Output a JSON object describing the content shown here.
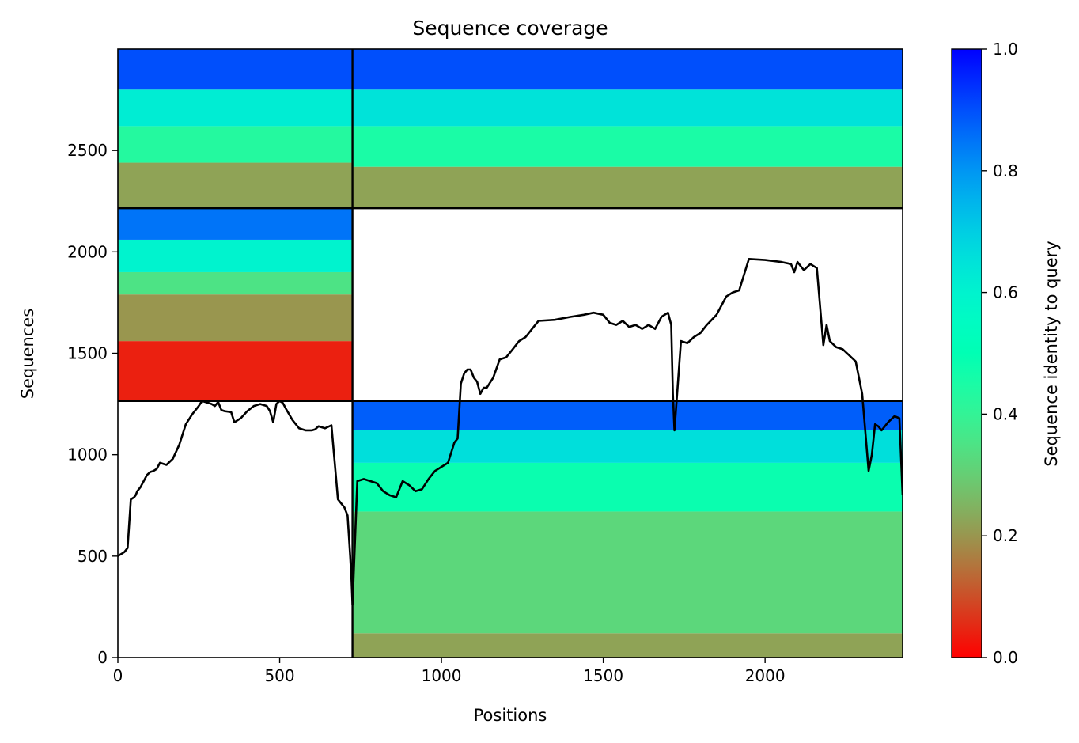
{
  "chart_data": {
    "type": "heatmap",
    "title": "Sequence coverage",
    "xlabel": "Positions",
    "ylabel": "Sequences",
    "colorbar_label": "Sequence identity to query",
    "colormap": "rainbow_r",
    "xlim": [
      0,
      2425
    ],
    "ylim": [
      0,
      3000
    ],
    "xticks": [
      0,
      500,
      1000,
      1500,
      2000
    ],
    "yticks": [
      0,
      500,
      1000,
      1500,
      2000,
      2500
    ],
    "colorbar_ticks": [
      0.0,
      0.2,
      0.4,
      0.6,
      0.8,
      1.0
    ],
    "colorbar_range": [
      0.0,
      1.0
    ],
    "grid": false,
    "chain_boundaries_x": [
      725
    ],
    "chain_boundaries_y": [
      1265,
      2215
    ],
    "blocks": [
      {
        "x": [
          0,
          725
        ],
        "y": [
          2215,
          3000
        ],
        "bands": [
          {
            "y": [
              2215,
              2440
            ],
            "identity": 0.22
          },
          {
            "y": [
              2440,
              2620
            ],
            "identity": 0.43
          },
          {
            "y": [
              2620,
              2800
            ],
            "identity": 0.62
          },
          {
            "y": [
              2800,
              3000
            ],
            "identity": 0.9
          }
        ]
      },
      {
        "x": [
          725,
          2425
        ],
        "y": [
          2215,
          3000
        ],
        "bands": [
          {
            "y": [
              2215,
              2420
            ],
            "identity": 0.22
          },
          {
            "y": [
              2420,
              2620
            ],
            "identity": 0.45
          },
          {
            "y": [
              2620,
              2800
            ],
            "identity": 0.65
          },
          {
            "y": [
              2800,
              3000
            ],
            "identity": 0.9
          }
        ]
      },
      {
        "x": [
          0,
          725
        ],
        "y": [
          1265,
          2215
        ],
        "bands": [
          {
            "y": [
              1265,
              1560
            ],
            "identity": 0.04
          },
          {
            "y": [
              1560,
              1790
            ],
            "identity": 0.2
          },
          {
            "y": [
              1790,
              1900
            ],
            "identity": 0.35
          },
          {
            "y": [
              1900,
              2060
            ],
            "identity": 0.6
          },
          {
            "y": [
              2060,
              2215
            ],
            "identity": 0.85
          }
        ]
      },
      {
        "x": [
          725,
          2425
        ],
        "y": [
          0,
          1265
        ],
        "bands": [
          {
            "y": [
              0,
              120
            ],
            "identity": 0.22
          },
          {
            "y": [
              120,
              720
            ],
            "identity": 0.32
          },
          {
            "y": [
              720,
              960
            ],
            "identity": 0.48
          },
          {
            "y": [
              960,
              1120
            ],
            "identity": 0.66
          },
          {
            "y": [
              1120,
              1265
            ],
            "identity": 0.88
          }
        ]
      }
    ],
    "coverage_line": {
      "name": "coverage",
      "x": [
        0,
        20,
        30,
        40,
        50,
        55,
        60,
        70,
        80,
        90,
        100,
        110,
        120,
        130,
        150,
        170,
        190,
        200,
        210,
        230,
        250,
        260,
        270,
        280,
        290,
        300,
        310,
        320,
        330,
        350,
        360,
        380,
        400,
        420,
        440,
        460,
        470,
        480,
        490,
        500,
        510,
        520,
        540,
        560,
        580,
        600,
        610,
        620,
        640,
        660,
        680,
        690,
        700,
        710,
        718,
        722,
        725,
        740,
        760,
        780,
        800,
        820,
        840,
        860,
        880,
        900,
        920,
        940,
        960,
        980,
        1000,
        1020,
        1040,
        1050,
        1060,
        1070,
        1080,
        1090,
        1100,
        1110,
        1120,
        1130,
        1140,
        1160,
        1180,
        1200,
        1220,
        1240,
        1260,
        1280,
        1300,
        1350,
        1400,
        1440,
        1470,
        1500,
        1520,
        1540,
        1560,
        1580,
        1600,
        1620,
        1640,
        1660,
        1680,
        1700,
        1710,
        1715,
        1720,
        1740,
        1760,
        1780,
        1800,
        1820,
        1850,
        1880,
        1900,
        1920,
        1950,
        2000,
        2050,
        2080,
        2090,
        2100,
        2110,
        2120,
        2140,
        2160,
        2180,
        2190,
        2200,
        2220,
        2240,
        2260,
        2280,
        2300,
        2320,
        2330,
        2340,
        2350,
        2360,
        2380,
        2400,
        2415,
        2425
      ],
      "y": [
        500,
        520,
        540,
        780,
        790,
        800,
        820,
        840,
        870,
        900,
        915,
        920,
        930,
        960,
        950,
        980,
        1050,
        1100,
        1150,
        1200,
        1240,
        1265,
        1260,
        1255,
        1250,
        1240,
        1260,
        1220,
        1215,
        1210,
        1160,
        1180,
        1215,
        1240,
        1250,
        1240,
        1215,
        1160,
        1250,
        1265,
        1255,
        1225,
        1170,
        1130,
        1120,
        1120,
        1125,
        1140,
        1130,
        1145,
        780,
        760,
        740,
        700,
        500,
        380,
        260,
        870,
        880,
        870,
        860,
        820,
        800,
        790,
        870,
        850,
        820,
        830,
        880,
        920,
        940,
        960,
        1060,
        1080,
        1350,
        1400,
        1420,
        1420,
        1380,
        1360,
        1300,
        1330,
        1330,
        1380,
        1470,
        1480,
        1520,
        1560,
        1580,
        1620,
        1660,
        1665,
        1680,
        1690,
        1700,
        1690,
        1650,
        1640,
        1660,
        1630,
        1640,
        1620,
        1640,
        1620,
        1680,
        1700,
        1640,
        1300,
        1120,
        1560,
        1550,
        1580,
        1600,
        1640,
        1690,
        1780,
        1800,
        1810,
        1965,
        1960,
        1950,
        1940,
        1900,
        1950,
        1930,
        1910,
        1940,
        1920,
        1540,
        1640,
        1560,
        1530,
        1520,
        1490,
        1460,
        1300,
        920,
        1000,
        1150,
        1140,
        1120,
        1160,
        1190,
        1180,
        800
      ]
    }
  }
}
